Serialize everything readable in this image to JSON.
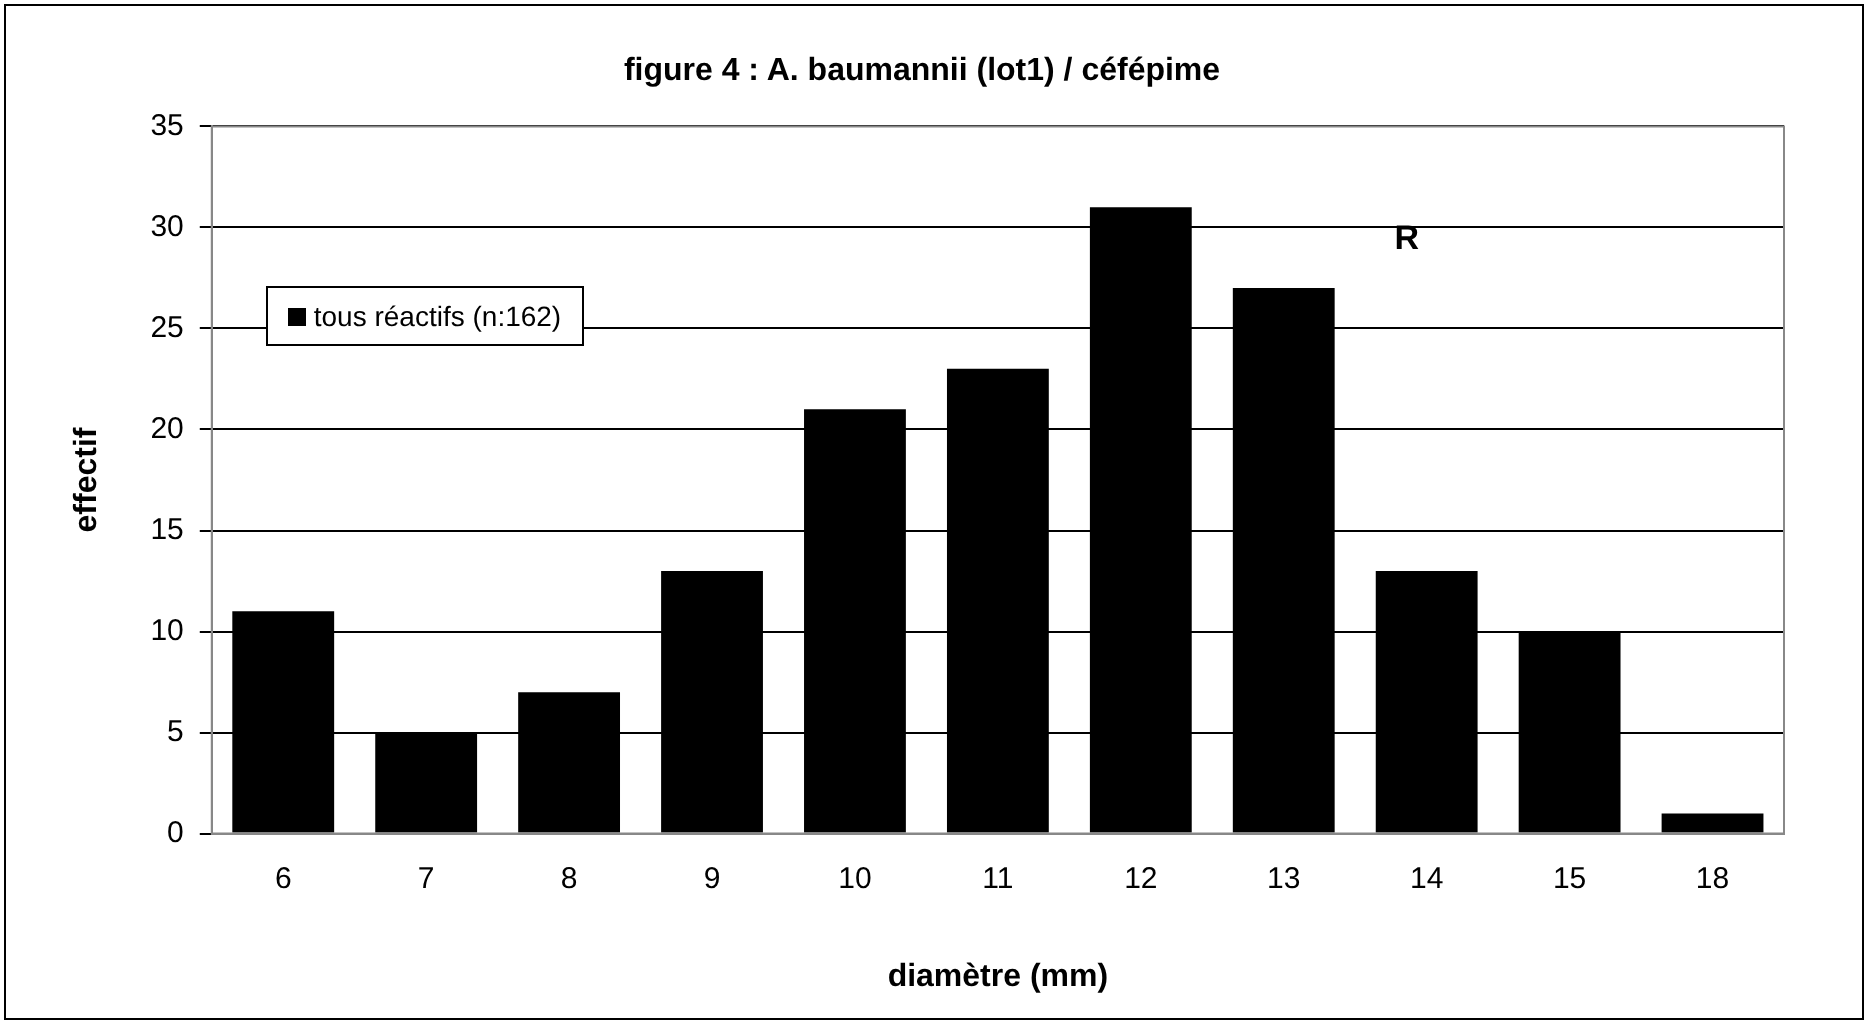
{
  "chart_data": {
    "type": "bar",
    "title": "figure 4 : A. baumannii (lot1) / céfépime",
    "xlabel": "diamètre (mm)",
    "ylabel": "effectif",
    "categories": [
      "6",
      "7",
      "8",
      "9",
      "10",
      "11",
      "12",
      "13",
      "14",
      "15",
      "18"
    ],
    "series": [
      {
        "name": "tous réactifs (n:162)",
        "color": "#000000",
        "values": [
          11,
          5,
          7,
          13,
          21,
          23,
          31,
          27,
          13,
          10,
          1
        ]
      }
    ],
    "ylim": [
      0,
      35
    ],
    "yticks": [
      0,
      5,
      10,
      15,
      20,
      25,
      30,
      35
    ],
    "grid": "y",
    "legend": "top left",
    "annotations": [
      "R"
    ]
  }
}
